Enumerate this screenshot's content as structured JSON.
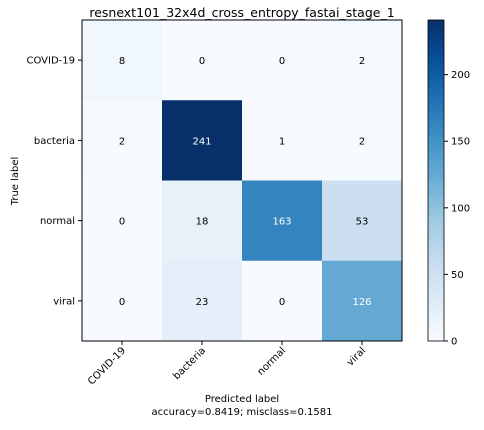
{
  "chart_data": {
    "type": "heatmap",
    "title": "resnext101_32x4d_cross_entropy_fastai_stage_1",
    "ylabel": "True label",
    "xlabel": "Predicted label",
    "xlabel_line2": "accuracy=0.8419; misclass=0.1581",
    "row_labels": [
      "COVID-19",
      "bacteria",
      "normal",
      "viral"
    ],
    "col_labels": [
      "COVID-19",
      "bacteria",
      "normal",
      "viral"
    ],
    "matrix": [
      [
        8,
        0,
        0,
        2
      ],
      [
        2,
        241,
        1,
        2
      ],
      [
        0,
        18,
        163,
        53
      ],
      [
        0,
        23,
        0,
        126
      ]
    ],
    "colorbar": {
      "min": 0,
      "max": 241,
      "ticks": [
        0,
        50,
        100,
        150,
        200
      ]
    },
    "colormap": "Blues"
  }
}
